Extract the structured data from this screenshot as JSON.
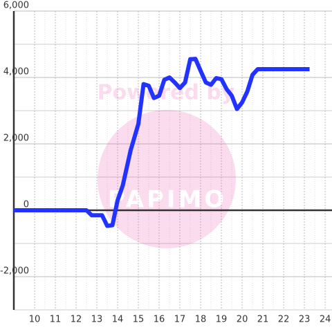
{
  "chart_data": {
    "type": "line",
    "x": [
      9,
      12.5,
      12.75,
      13.25,
      13.5,
      13.75,
      14,
      14.25,
      14.625,
      15,
      15.25,
      15.5,
      15.75,
      16,
      16.25,
      16.5,
      16.75,
      17,
      17.25,
      17.5,
      17.75,
      18,
      18.25,
      18.5,
      18.75,
      19,
      19.25,
      19.5,
      19.75,
      20,
      20.25,
      20.5,
      20.75,
      23.25
    ],
    "series": [
      {
        "color": "#2233ff",
        "values": [
          0,
          0,
          -150,
          -150,
          -470,
          -450,
          300,
          750,
          1800,
          2600,
          3800,
          3750,
          3380,
          3450,
          3930,
          4000,
          3850,
          3680,
          3850,
          4550,
          4560,
          4200,
          3850,
          3780,
          3980,
          3950,
          3650,
          3450,
          3050,
          3250,
          3580,
          4080,
          4250,
          4250
        ]
      }
    ],
    "xlim": [
      9,
      24.33
    ],
    "ylim": [
      -3000,
      6000
    ],
    "xticks": [
      10,
      11,
      12,
      13,
      14,
      15,
      16,
      17,
      18,
      19,
      20,
      21,
      22,
      23,
      24
    ],
    "yticks": [
      {
        "value": 6000,
        "label": "6,000"
      },
      {
        "value": 4000,
        "label": "4,000"
      },
      {
        "value": 2000,
        "label": "2,000"
      },
      0,
      {
        "value": -2000,
        "label": "-2,000"
      }
    ],
    "grid": true,
    "watermark": {
      "text": "Powered by",
      "logo": "PAPIMO"
    }
  }
}
